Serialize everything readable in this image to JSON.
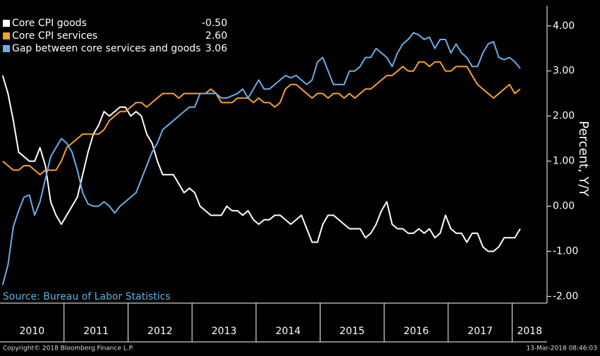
{
  "chart_data": {
    "type": "line",
    "y_label": "Percent, Y/Y",
    "source": "Source: Bureau of Labor Statistics",
    "copyright": "Copyright© 2018 Bloomberg Finance L.P.",
    "timestamp": "13-Mar-2018 08:46:03",
    "categories": [
      "2010",
      null,
      null,
      null,
      null,
      null,
      null,
      null,
      null,
      null,
      null,
      null,
      "2011",
      null,
      null,
      null,
      null,
      null,
      null,
      null,
      null,
      null,
      null,
      null,
      "2012",
      null,
      null,
      null,
      null,
      null,
      null,
      null,
      null,
      null,
      null,
      null,
      "2013",
      null,
      null,
      null,
      null,
      null,
      null,
      null,
      null,
      null,
      null,
      null,
      "2014",
      null,
      null,
      null,
      null,
      null,
      null,
      null,
      null,
      null,
      null,
      null,
      "2015",
      null,
      null,
      null,
      null,
      null,
      null,
      null,
      null,
      null,
      null,
      null,
      "2016",
      null,
      null,
      null,
      null,
      null,
      null,
      null,
      null,
      null,
      null,
      null,
      "2017",
      null,
      null,
      null,
      null,
      null,
      null,
      null,
      null,
      null,
      null,
      null,
      "2018",
      null
    ],
    "series": [
      {
        "name": "Core CPI goods",
        "legend_value": "-0.50",
        "color": "#ffffff",
        "values": [
          2.9,
          2.5,
          1.9,
          1.2,
          1.1,
          1.0,
          1.0,
          1.3,
          0.9,
          0.1,
          -0.2,
          -0.4,
          -0.2,
          0.0,
          0.2,
          0.7,
          1.2,
          1.6,
          1.8,
          2.1,
          2.0,
          2.1,
          2.2,
          2.2,
          2.0,
          2.1,
          2.0,
          1.6,
          1.4,
          1.0,
          0.7,
          0.7,
          0.7,
          0.5,
          0.3,
          0.4,
          0.3,
          0.0,
          -0.1,
          -0.2,
          -0.2,
          -0.2,
          0.0,
          -0.1,
          -0.1,
          -0.2,
          -0.1,
          -0.3,
          -0.4,
          -0.3,
          -0.3,
          -0.2,
          -0.2,
          -0.3,
          -0.4,
          -0.3,
          -0.2,
          -0.5,
          -0.8,
          -0.8,
          -0.4,
          -0.2,
          -0.2,
          -0.3,
          -0.4,
          -0.5,
          -0.5,
          -0.5,
          -0.7,
          -0.6,
          -0.4,
          -0.1,
          0.1,
          -0.4,
          -0.5,
          -0.5,
          -0.6,
          -0.6,
          -0.5,
          -0.6,
          -0.5,
          -0.7,
          -0.6,
          -0.2,
          -0.5,
          -0.6,
          -0.6,
          -0.8,
          -0.6,
          -0.6,
          -0.9,
          -1.0,
          -1.0,
          -0.9,
          -0.7,
          -0.7,
          -0.7,
          -0.5
        ]
      },
      {
        "name": "Core CPI services",
        "legend_value": "2.60",
        "color": "#f5a033",
        "values": [
          1.0,
          0.9,
          0.8,
          0.8,
          0.9,
          0.9,
          0.8,
          0.7,
          0.8,
          0.8,
          0.8,
          1.0,
          1.3,
          1.4,
          1.5,
          1.6,
          1.6,
          1.6,
          1.6,
          1.7,
          1.9,
          2.0,
          2.1,
          2.1,
          2.2,
          2.3,
          2.3,
          2.2,
          2.3,
          2.4,
          2.5,
          2.5,
          2.5,
          2.4,
          2.5,
          2.5,
          2.5,
          2.5,
          2.5,
          2.6,
          2.5,
          2.3,
          2.3,
          2.3,
          2.4,
          2.4,
          2.4,
          2.3,
          2.4,
          2.3,
          2.3,
          2.2,
          2.3,
          2.6,
          2.7,
          2.7,
          2.6,
          2.5,
          2.4,
          2.5,
          2.5,
          2.4,
          2.5,
          2.5,
          2.4,
          2.5,
          2.4,
          2.5,
          2.6,
          2.6,
          2.7,
          2.8,
          2.9,
          2.9,
          3.0,
          3.1,
          3.0,
          3.0,
          3.2,
          3.2,
          3.1,
          3.2,
          3.2,
          3.0,
          3.0,
          3.1,
          3.1,
          3.1,
          2.9,
          2.7,
          2.6,
          2.5,
          2.4,
          2.5,
          2.6,
          2.7,
          2.5,
          2.6
        ]
      },
      {
        "name": "Gap between core services and goods",
        "legend_value": "3.06",
        "color": "#6aaee8",
        "values": [
          -1.75,
          -1.3,
          -0.45,
          -0.1,
          0.2,
          0.25,
          -0.2,
          0.1,
          0.6,
          1.1,
          1.3,
          1.5,
          1.4,
          1.2,
          0.8,
          0.3,
          0.05,
          0.0,
          0.0,
          0.1,
          0.0,
          -0.15,
          0.0,
          0.1,
          0.2,
          0.3,
          0.6,
          0.9,
          1.2,
          1.4,
          1.7,
          1.8,
          1.9,
          2.0,
          2.1,
          2.2,
          2.2,
          2.5,
          2.5,
          2.5,
          2.5,
          2.4,
          2.4,
          2.45,
          2.5,
          2.6,
          2.4,
          2.6,
          2.8,
          2.6,
          2.6,
          2.7,
          2.8,
          2.9,
          2.85,
          2.9,
          2.8,
          2.7,
          2.8,
          3.2,
          3.3,
          3.0,
          2.7,
          2.7,
          2.7,
          3.0,
          3.0,
          3.1,
          3.3,
          3.3,
          3.5,
          3.4,
          3.3,
          3.1,
          3.4,
          3.6,
          3.7,
          3.85,
          3.8,
          3.7,
          3.75,
          3.5,
          3.7,
          3.7,
          3.4,
          3.6,
          3.4,
          3.3,
          3.1,
          3.1,
          3.4,
          3.6,
          3.65,
          3.3,
          3.25,
          3.3,
          3.2,
          3.06
        ]
      }
    ],
    "ylim": [
      -2.15,
      4.45
    ],
    "yticks": [
      {
        "value": -2,
        "label": "-2.00"
      },
      {
        "value": -1,
        "label": "-1.00"
      },
      {
        "value": 0,
        "label": "0.00"
      },
      {
        "value": 1,
        "label": "1.00"
      },
      {
        "value": 2,
        "label": "2.00"
      },
      {
        "value": 3,
        "label": "3.00"
      },
      {
        "value": 4,
        "label": "4.00"
      }
    ],
    "grid": false,
    "legend_position": "top-left"
  }
}
